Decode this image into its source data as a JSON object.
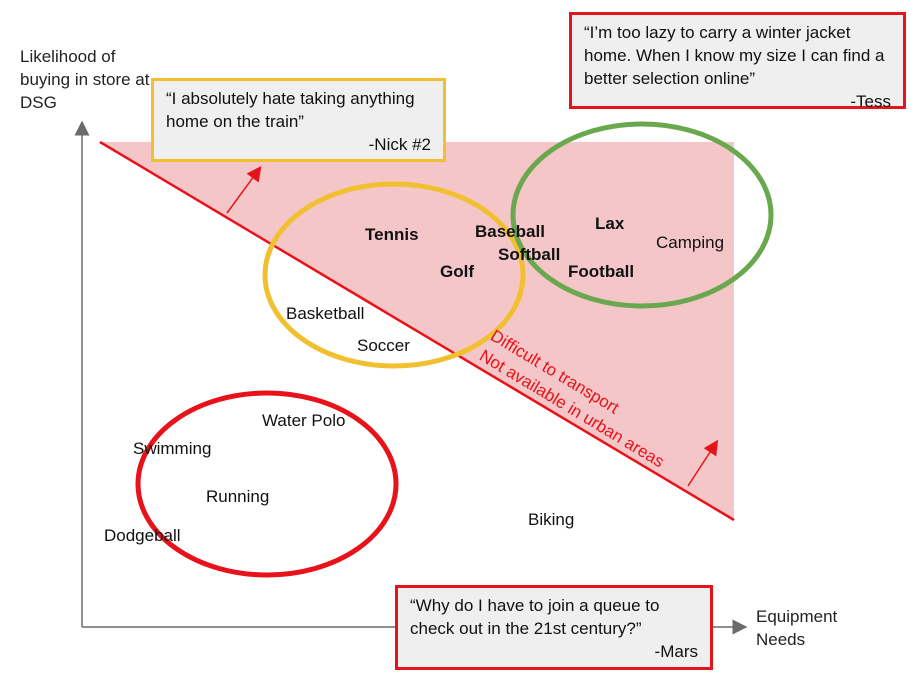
{
  "axes": {
    "y_label": "Likelihood of buying in store at DSG",
    "x_label": "Equipment Needs"
  },
  "sports": [
    {
      "id": "tennis",
      "label": "Tennis",
      "bold": true
    },
    {
      "id": "baseball",
      "label": "Baseball",
      "bold": true
    },
    {
      "id": "softball",
      "label": "Softball",
      "bold": true
    },
    {
      "id": "golf",
      "label": "Golf",
      "bold": true
    },
    {
      "id": "lax",
      "label": "Lax",
      "bold": true
    },
    {
      "id": "football",
      "label": "Football",
      "bold": true
    },
    {
      "id": "camping",
      "label": "Camping",
      "bold": false
    },
    {
      "id": "basketball",
      "label": "Basketball",
      "bold": false
    },
    {
      "id": "soccer",
      "label": "Soccer",
      "bold": false
    },
    {
      "id": "water-polo",
      "label": "Water Polo",
      "bold": false
    },
    {
      "id": "swimming",
      "label": "Swimming",
      "bold": false
    },
    {
      "id": "running",
      "label": "Running",
      "bold": false
    },
    {
      "id": "dodgeball",
      "label": "Dodgeball",
      "bold": false
    },
    {
      "id": "biking",
      "label": "Biking",
      "bold": false
    }
  ],
  "divider_notes": {
    "line1": "Difficult to transport",
    "line2": "Not available in urban areas"
  },
  "quotes": {
    "nick": {
      "text": "“I absolutely hate taking anything home on the train”",
      "author": "-Nick #2"
    },
    "tess": {
      "text": "“I’m too lazy to carry a winter jacket home. When I know my size I can find a better selection online”",
      "author": "-Tess"
    },
    "mars": {
      "text": "“Why do I have to join a queue to check out in the 21st century?”",
      "author": "-Mars"
    }
  },
  "colors": {
    "accent_red": "#e8121a",
    "shade_pink": "#f4c6c8",
    "circle_yellow": "#f0c030",
    "circle_green": "#6aa84f",
    "quote_fill": "#efefef",
    "axis_gray": "#6b6b6b"
  }
}
